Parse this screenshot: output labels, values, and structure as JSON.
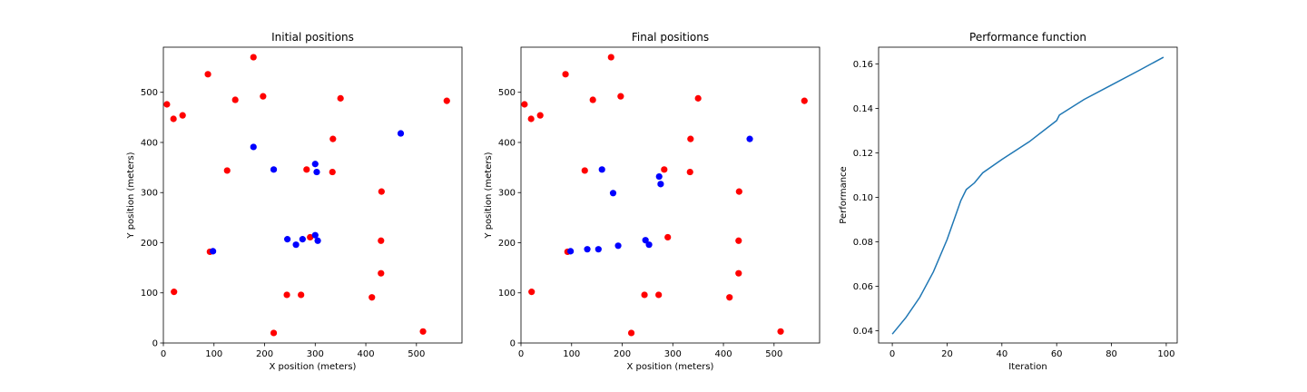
{
  "colors": {
    "red": "#ff0000",
    "blue": "#0000ff",
    "line": "#1f77b4"
  },
  "chart_data": [
    {
      "type": "scatter",
      "title": "Initial positions",
      "xlabel": "X position (meters)",
      "ylabel": "Y position (meters)",
      "xlim": [
        0,
        590
      ],
      "ylim": [
        0,
        590
      ],
      "xticks": [
        0,
        100,
        200,
        300,
        400,
        500
      ],
      "yticks": [
        0,
        100,
        200,
        300,
        400,
        500
      ],
      "series": [
        {
          "color": "#ff0000",
          "points": [
            [
              7,
              476
            ],
            [
              20,
              447
            ],
            [
              38,
              454
            ],
            [
              88,
              536
            ],
            [
              178,
              570
            ],
            [
              142,
              485
            ],
            [
              197,
              492
            ],
            [
              350,
              488
            ],
            [
              560,
              483
            ],
            [
              126,
              344
            ],
            [
              283,
              346
            ],
            [
              335,
              407
            ],
            [
              334,
              341
            ],
            [
              431,
              302
            ],
            [
              430,
              204
            ],
            [
              430,
              139
            ],
            [
              412,
              91
            ],
            [
              290,
              211
            ],
            [
              244,
              96
            ],
            [
              272,
              96
            ],
            [
              218,
              20
            ],
            [
              513,
              23
            ],
            [
              21,
              102
            ],
            [
              92,
              182
            ]
          ]
        },
        {
          "color": "#0000ff",
          "points": [
            [
              178,
              391
            ],
            [
              218,
              346
            ],
            [
              469,
              418
            ],
            [
              300,
              357
            ],
            [
              303,
              341
            ],
            [
              245,
              207
            ],
            [
              262,
              196
            ],
            [
              275,
              207
            ],
            [
              300,
              215
            ],
            [
              305,
              204
            ],
            [
              98,
              183
            ]
          ]
        }
      ]
    },
    {
      "type": "scatter",
      "title": "Final positions",
      "xlabel": "X position (meters)",
      "ylabel": "Y position (meters)",
      "xlim": [
        0,
        590
      ],
      "ylim": [
        0,
        590
      ],
      "xticks": [
        0,
        100,
        200,
        300,
        400,
        500
      ],
      "yticks": [
        0,
        100,
        200,
        300,
        400,
        500
      ],
      "series": [
        {
          "color": "#ff0000",
          "points": [
            [
              7,
              476
            ],
            [
              20,
              447
            ],
            [
              38,
              454
            ],
            [
              88,
              536
            ],
            [
              178,
              570
            ],
            [
              142,
              485
            ],
            [
              197,
              492
            ],
            [
              350,
              488
            ],
            [
              560,
              483
            ],
            [
              126,
              344
            ],
            [
              283,
              346
            ],
            [
              335,
              407
            ],
            [
              334,
              341
            ],
            [
              431,
              302
            ],
            [
              430,
              204
            ],
            [
              430,
              139
            ],
            [
              412,
              91
            ],
            [
              290,
              211
            ],
            [
              244,
              96
            ],
            [
              272,
              96
            ],
            [
              218,
              20
            ],
            [
              513,
              23
            ],
            [
              21,
              102
            ],
            [
              92,
              182
            ]
          ]
        },
        {
          "color": "#0000ff",
          "points": [
            [
              160,
              346
            ],
            [
              182,
              299
            ],
            [
              273,
              332
            ],
            [
              276,
              317
            ],
            [
              452,
              407
            ],
            [
              131,
              187
            ],
            [
              153,
              187
            ],
            [
              192,
              194
            ],
            [
              246,
              205
            ],
            [
              253,
              196
            ],
            [
              98,
              183
            ]
          ]
        }
      ]
    },
    {
      "type": "line",
      "title": "Performance function",
      "xlabel": "Iteration",
      "ylabel": "Performance",
      "xlim": [
        -5,
        104
      ],
      "ylim": [
        0.0345,
        0.1675
      ],
      "xticks": [
        0,
        20,
        40,
        60,
        80,
        100
      ],
      "yticks": [
        0.04,
        0.06,
        0.08,
        0.1,
        0.12,
        0.14,
        0.16
      ],
      "ytick_labels": [
        "0.04",
        "0.06",
        "0.08",
        "0.10",
        "0.12",
        "0.14",
        "0.16"
      ],
      "series": [
        {
          "color": "#1f77b4",
          "x": [
            0,
            5,
            10,
            15,
            20,
            25,
            27,
            30,
            33,
            40,
            50,
            60,
            61,
            70,
            80,
            90,
            99
          ],
          "y": [
            0.0385,
            0.046,
            0.055,
            0.0665,
            0.081,
            0.0985,
            0.1035,
            0.1065,
            0.111,
            0.117,
            0.125,
            0.1345,
            0.137,
            0.144,
            0.1505,
            0.157,
            0.163
          ]
        }
      ]
    }
  ]
}
